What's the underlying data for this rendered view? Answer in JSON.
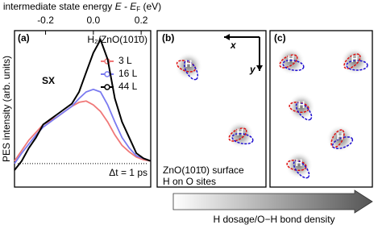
{
  "chart_data": {
    "type": "line",
    "panel_label": "(a)",
    "sample": "H₂/ZnO(101̄0)",
    "xlabel": {
      "text": "intermediate state energy ",
      "var": "E - E",
      "sub": "F",
      "unit": " (eV)"
    },
    "ylabel": "PES intensity (arb. units)",
    "annotation": "SX",
    "delay": "Δt = 1 ps",
    "xlim": [
      -0.33,
      0.24
    ],
    "xticks": [
      {
        "value": -0.2,
        "label": "-0.2"
      },
      {
        "value": 0,
        "label": "0.0"
      },
      {
        "value": 0.2,
        "label": "0.2"
      }
    ],
    "ylim": [
      -0.18,
      1.02
    ],
    "x": [
      -0.33,
      -0.3,
      -0.27,
      -0.24,
      -0.21,
      -0.18,
      -0.15,
      -0.12,
      -0.09,
      -0.06,
      -0.03,
      0,
      0.03,
      0.06,
      0.09,
      0.12,
      0.15,
      0.18,
      0.21,
      0.24
    ],
    "series": [
      {
        "name": "3 L",
        "color": "#f07878",
        "values": [
          0.02,
          0.1,
          0.18,
          0.24,
          0.3,
          0.33,
          0.36,
          0.4,
          0.44,
          0.47,
          0.48,
          0.45,
          0.4,
          0.32,
          0.22,
          0.14,
          0.09,
          0.05,
          0.03,
          0.02
        ]
      },
      {
        "name": "16 L",
        "color": "#7a7af0",
        "values": [
          0.0,
          0.08,
          0.15,
          0.22,
          0.28,
          0.32,
          0.36,
          0.4,
          0.44,
          0.5,
          0.55,
          0.57,
          0.55,
          0.45,
          0.32,
          0.2,
          0.12,
          0.06,
          0.04,
          0.02
        ]
      },
      {
        "name": "44 L",
        "color": "#000000",
        "values": [
          -0.05,
          0.02,
          0.12,
          0.2,
          0.3,
          0.34,
          0.38,
          0.42,
          0.46,
          0.55,
          0.7,
          0.85,
          0.95,
          0.8,
          0.5,
          0.32,
          0.2,
          0.08,
          0.04,
          0.02
        ]
      }
    ]
  },
  "panel_b": {
    "label": "(b)",
    "x_axis": "x",
    "y_axis": "y",
    "sites": [
      "H",
      "H"
    ],
    "caption": [
      "ZnO(101̄0) surface",
      "H on O sites"
    ]
  },
  "panel_c": {
    "label": "(c)",
    "sites": [
      "H",
      "H",
      "H",
      "H",
      "H"
    ]
  },
  "arrow_label": "H dosage/O−H bond density"
}
